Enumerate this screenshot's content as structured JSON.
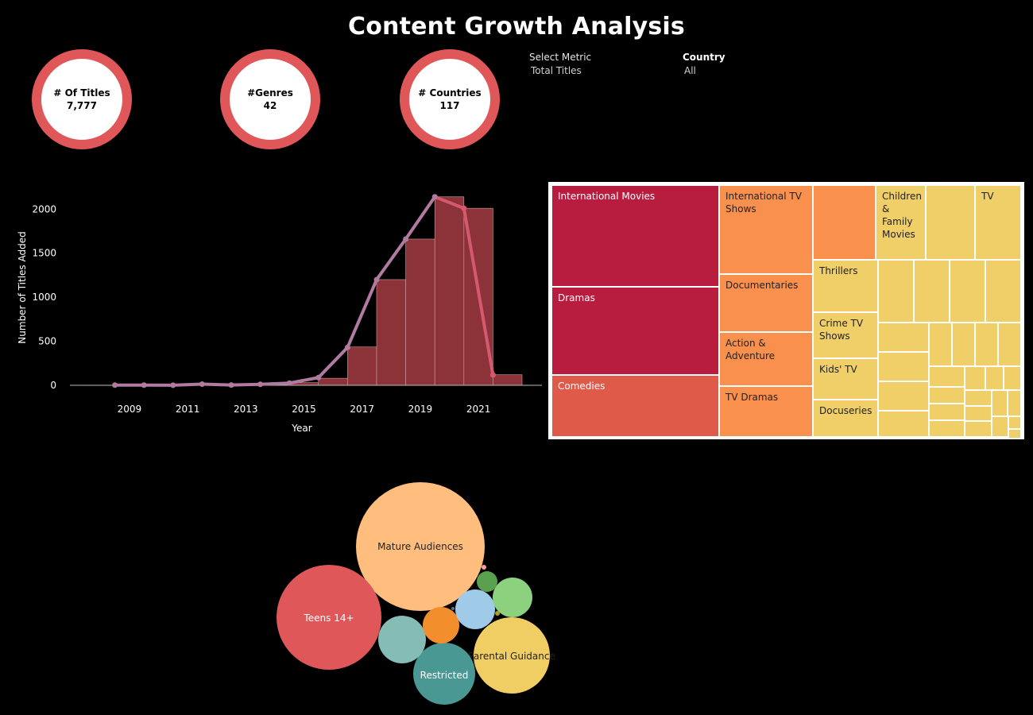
{
  "dashboard": {
    "title": "Content Growth Analysis"
  },
  "kpis": [
    {
      "label": "# Of Titles",
      "value": "7,777"
    },
    {
      "label": "#Genres",
      "value": "42"
    },
    {
      "label": "# Countries",
      "value": "117"
    }
  ],
  "filters": {
    "metric": {
      "label": "Select Metric",
      "value": "Total Titles"
    },
    "country": {
      "label": "Country",
      "value": "All"
    }
  },
  "colors": {
    "kpi_ring": "#e05759",
    "bar": "#8c333a",
    "line": "#b07aa1",
    "line_tail": "#d4596f",
    "treemap_red": "#b81c3f",
    "treemap_coral": "#e05a4a",
    "treemap_orange": "#f9904d",
    "treemap_yellow": "#f0cf68"
  },
  "chart_data": [
    {
      "type": "bar",
      "xlabel": "Year",
      "ylabel": "Number of Titles Added",
      "ylim": [
        0,
        2300
      ],
      "yticks": [
        0,
        500,
        1000,
        1500,
        2000
      ],
      "xtick_labels": [
        "2009",
        "2011",
        "2013",
        "2015",
        "2017",
        "2019",
        "2021"
      ],
      "x": [
        2008,
        2009,
        2010,
        2011,
        2012,
        2013,
        2014,
        2015,
        2016,
        2017,
        2018,
        2019,
        2020,
        2021,
        2022
      ],
      "series": [
        {
          "type": "bar",
          "values": [
            2,
            2,
            1,
            13,
            3,
            11,
            25,
            30,
            80,
            435,
            1200,
            1660,
            2140,
            2010,
            120
          ]
        },
        {
          "type": "line",
          "values": [
            null,
            2,
            2,
            1,
            13,
            3,
            11,
            25,
            88,
            430,
            1200,
            1660,
            2140,
            2010,
            117
          ]
        }
      ],
      "grid": false
    },
    {
      "type": "treemap",
      "labels": [
        "International Movies",
        "Dramas",
        "Comedies",
        "International TV Shows",
        "Documentaries",
        "Action & Adventure",
        "TV Dramas",
        "Children & Family Movies",
        "TV",
        "Thrillers",
        "Crime TV Shows",
        "Kids' TV",
        "Docuseries"
      ]
    },
    {
      "type": "bubble",
      "labels": [
        "Mature Audiences",
        "Teens 14+",
        "Parental Guidance",
        "Restricted"
      ]
    }
  ]
}
